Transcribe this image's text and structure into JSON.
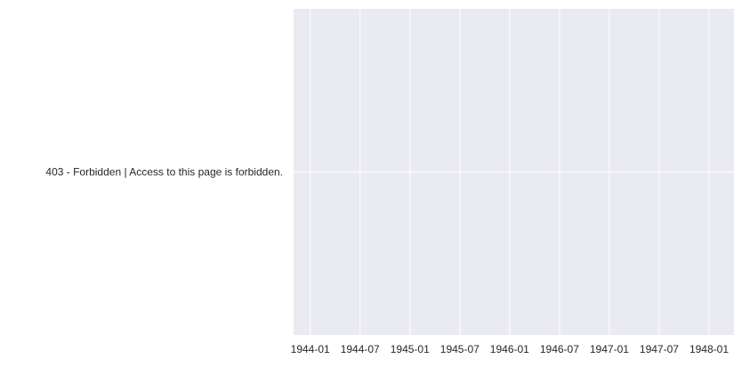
{
  "chart_data": {
    "type": "bar",
    "orientation": "horizontal",
    "title": "",
    "xlabel": "",
    "ylabel": "",
    "categories": [
      "403 - Forbidden | Access to this page is forbidden."
    ],
    "series": [
      {
        "values": [
          null
        ]
      }
    ],
    "x_axis": {
      "type": "date",
      "range": [
        "1943-11",
        "1948-04"
      ],
      "ticks": [
        "1944-01",
        "1944-07",
        "1945-01",
        "1945-07",
        "1946-01",
        "1946-07",
        "1947-01",
        "1947-07",
        "1948-01"
      ]
    },
    "grid": true,
    "legend": "none",
    "colors": {
      "plot_background": "#eaeaf2",
      "grid": "#ffffff",
      "text": "#262626"
    }
  }
}
